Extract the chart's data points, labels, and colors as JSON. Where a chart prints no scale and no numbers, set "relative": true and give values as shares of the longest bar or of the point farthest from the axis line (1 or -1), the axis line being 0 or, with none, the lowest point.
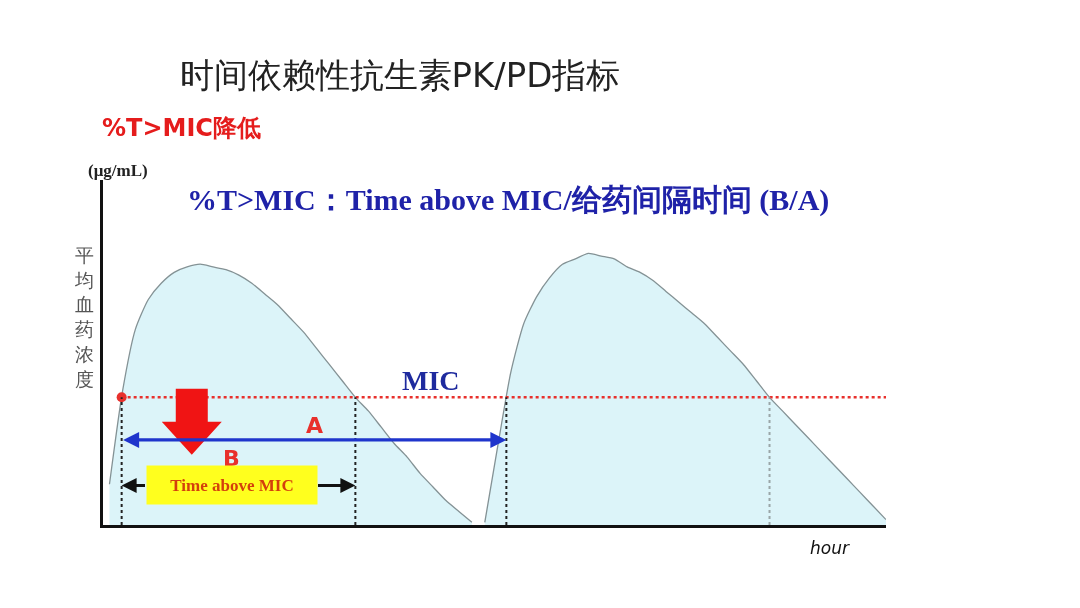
{
  "chart_data": {
    "type": "area",
    "relative": true,
    "title": "时间依赖性抗生素PK/PD指标",
    "subtitle": "%T>MIC降低",
    "ylabel": "平均血药浓度",
    "xlabel": "hour",
    "annotations": [
      "%T>MIC：Time above MIC/给药间隔时间 (B/A)",
      "(μg/mL)",
      "A",
      "B",
      "Time above MIC"
    ],
    "categories": [
      null,
      null,
      null,
      null,
      null,
      null,
      null,
      null,
      null,
      null,
      null,
      null,
      null,
      null,
      null,
      null,
      null,
      null,
      null,
      null,
      null,
      null,
      null,
      null,
      null,
      null,
      null,
      null,
      null,
      null,
      null,
      null,
      null,
      null,
      null,
      null,
      null,
      null,
      null,
      null,
      null,
      null,
      null,
      null,
      null,
      null,
      null,
      null,
      null,
      null,
      null,
      null,
      null,
      null,
      null,
      null,
      null,
      null,
      null,
      null,
      null
    ],
    "series": [
      {
        "color": "#dcf4f9",
        "values": [
          0.15,
          0.49,
          0.72,
          0.83,
          0.89,
          0.93,
          0.95,
          0.96,
          0.95,
          0.94,
          0.92,
          0.89,
          0.85,
          0.81,
          0.76,
          0.71,
          0.65,
          0.59,
          0.53,
          0.47,
          0.42,
          0.36,
          0.3,
          0.25,
          0.19,
          0.14,
          0.09,
          0.05,
          0.01,
          null,
          null,
          null,
          null,
          null,
          null,
          null,
          null,
          null,
          null,
          null,
          null,
          null,
          null,
          null,
          null,
          null,
          null,
          null,
          null,
          null,
          null,
          null,
          null,
          null,
          null,
          null,
          null,
          null,
          null,
          null,
          null
        ]
      },
      {
        "color": "#dcf4f9",
        "values": [
          null,
          null,
          null,
          null,
          null,
          null,
          null,
          null,
          null,
          null,
          null,
          null,
          null,
          null,
          null,
          null,
          null,
          null,
          null,
          null,
          null,
          null,
          null,
          null,
          null,
          null,
          null,
          null,
          null,
          0.01,
          0.29,
          0.56,
          0.74,
          0.84,
          0.91,
          0.96,
          0.98,
          1,
          0.99,
          0.98,
          0.95,
          0.93,
          0.9,
          0.86,
          0.82,
          0.78,
          0.74,
          0.69,
          0.64,
          0.59,
          0.53,
          0.47,
          0.42,
          0.37,
          0.32,
          0.27,
          0.22,
          0.17,
          0.12,
          0.07,
          0.02
        ]
      }
    ],
    "ref_lines": [
      {
        "axis": "y",
        "value": 0.47,
        "label": "MIC",
        "color": "#e8302c",
        "line_style": "dotted"
      }
    ]
  }
}
